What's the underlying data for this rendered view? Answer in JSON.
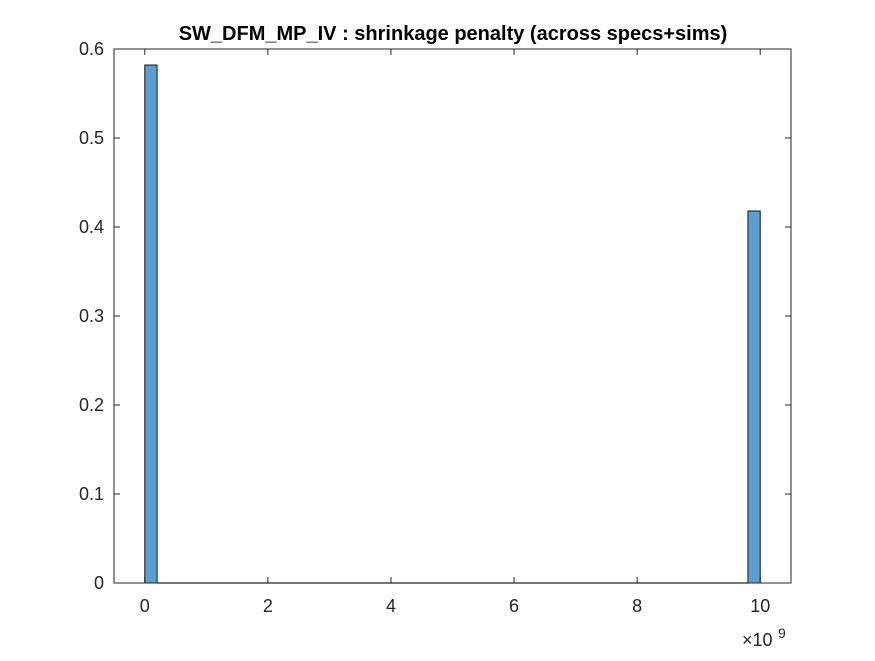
{
  "chart_data": {
    "type": "bar",
    "title": "SW_DFM_MP_IV : shrinkage penalty (across specs+sims)",
    "xlabel": "",
    "ylabel": "",
    "x_exponent_label": "×10",
    "x_exponent_power": "9",
    "xlim": [
      -0.5,
      10.5
    ],
    "ylim": [
      0,
      0.6
    ],
    "x_ticks": [
      0,
      2,
      4,
      6,
      8,
      10
    ],
    "x_tick_labels": [
      "0",
      "2",
      "4",
      "6",
      "8",
      "10"
    ],
    "y_ticks": [
      0,
      0.1,
      0.2,
      0.3,
      0.4,
      0.5,
      0.6
    ],
    "y_tick_labels": [
      "0",
      "0.1",
      "0.2",
      "0.3",
      "0.4",
      "0.5",
      "0.6"
    ],
    "bin_width": 0.2,
    "bins": [
      {
        "x_start": 0.0,
        "x_end": 0.2,
        "value": 0.582
      },
      {
        "x_start": 9.8,
        "x_end": 10.0,
        "value": 0.418
      }
    ],
    "grid": false,
    "legend": "none",
    "bar_color": "#4DBEEE",
    "bar_fill": "#5B9ECF",
    "bar_edge": "#1a1a1a",
    "axis_color": "#262626"
  }
}
